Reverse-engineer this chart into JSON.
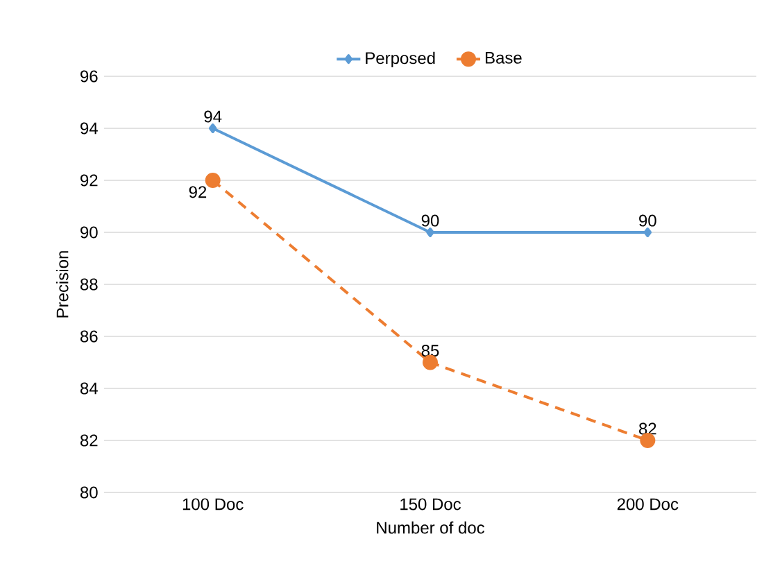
{
  "chart_data": {
    "type": "line",
    "xlabel": "Number of doc",
    "ylabel": "Precision",
    "categories": [
      "100 Doc",
      "150 Doc",
      "200 Doc"
    ],
    "series": [
      {
        "name": "Perposed",
        "color": "#5b9bd5",
        "values": [
          94,
          90,
          90
        ],
        "marker": "diamond",
        "line_style": "solid"
      },
      {
        "name": "Base",
        "color": "#ed7d31",
        "values": [
          92,
          85,
          82
        ],
        "marker": "circle",
        "line_style": "dashed"
      }
    ],
    "ylim": [
      80,
      96
    ],
    "yticks": [
      80,
      82,
      84,
      86,
      88,
      90,
      92,
      94,
      96
    ],
    "grid": "y",
    "legend": "top",
    "data_labels": true
  }
}
